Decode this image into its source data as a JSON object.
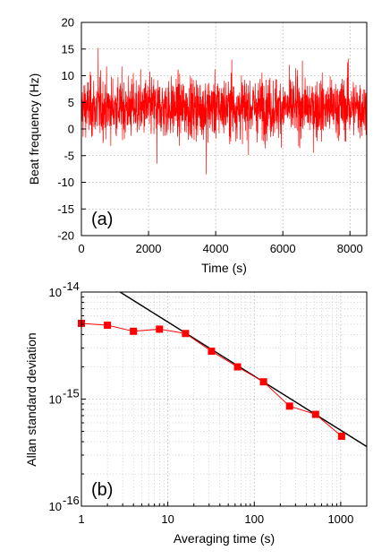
{
  "chart_data": [
    {
      "type": "line",
      "panel_label": "(a)",
      "xlabel": "Time (s)",
      "ylabel": "Beat frequency (Hz)",
      "xlim": [
        0,
        8500
      ],
      "ylim": [
        -20,
        20
      ],
      "xticks": [
        0,
        2000,
        4000,
        6000,
        8000
      ],
      "yticks": [
        -20,
        -15,
        -10,
        -5,
        0,
        5,
        10,
        15,
        20
      ],
      "grid": true,
      "series": [
        {
          "color": "#ff0000",
          "noise": {
            "mean": 4,
            "std": 2.8,
            "min": -8.5,
            "max": 15.2,
            "duration": 8500,
            "samples": 1700,
            "spikes": [
              [
                500,
                15.2
              ],
              [
                3720,
                -8.5
              ],
              [
                4480,
                13.0
              ],
              [
                7950,
                13.2
              ],
              [
                2250,
                -6.5
              ]
            ]
          }
        }
      ]
    },
    {
      "type": "line",
      "panel_label": "(b)",
      "xlabel": "Averaging time (s)",
      "ylabel": "Allan standard deviation",
      "xscale": "log",
      "yscale": "log",
      "xlim": [
        1,
        2000
      ],
      "ylim": [
        1e-16,
        1e-14
      ],
      "xtick_labels": [
        {
          "value": 1,
          "label": "1"
        },
        {
          "value": 10,
          "label": "10"
        },
        {
          "value": 100,
          "label": "100"
        },
        {
          "value": 1000,
          "label": "1000"
        }
      ],
      "ytick_labels": [
        {
          "value": 1e-16,
          "base": "10",
          "exp": "-16"
        },
        {
          "value": 1e-15,
          "base": "10",
          "exp": "-15"
        },
        {
          "value": 1e-14,
          "base": "10",
          "exp": "-14"
        }
      ],
      "grid": true,
      "series": [
        {
          "color": "#ff0000",
          "marker": "square",
          "x": [
            1,
            2,
            4,
            8,
            16,
            32,
            64,
            128,
            256,
            512,
            1024
          ],
          "y": [
            5.1e-15,
            4.9e-15,
            4.3e-15,
            4.5e-15,
            4.1e-15,
            2.8e-15,
            2e-15,
            1.45e-15,
            8.6e-16,
            7.2e-16,
            4.5e-16
          ]
        },
        {
          "color": "#000000",
          "marker": "none",
          "x": [
            2.8,
            2000
          ],
          "y": [
            1e-14,
            3.6e-16
          ]
        }
      ]
    }
  ]
}
